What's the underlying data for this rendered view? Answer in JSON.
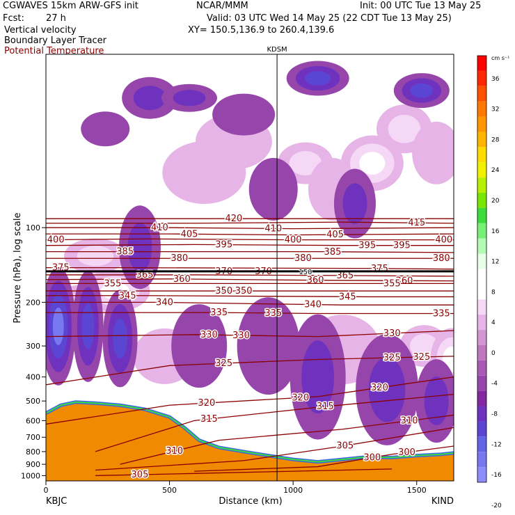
{
  "header": {
    "model": "CGWAVES 15km ARW-GFS init",
    "org": "NCAR/MMM",
    "init": "Init: 00 UTC Tue 13 May 25",
    "fcst_label": "Fcst:",
    "fcst_value": "27 h",
    "valid": "Valid: 03 UTC Wed 14 May 25 (22 CDT Tue 13 May 25)",
    "field1": "Vertical velocity",
    "field2": "Boundary Layer Tracer",
    "field3": "Potential Temperature",
    "xy": "XY= 150.5,136.9 to 260.4,139.6"
  },
  "colors": {
    "theta": "#8b0000",
    "field3_text": "#8b0000",
    "terrain": "#f08a00"
  },
  "chart_data": {
    "type": "heatmap",
    "marker_label": "KDSM",
    "marker_x_km": 935,
    "tropopause_label": "150",
    "xlabel": "Distance (km)",
    "ylabel": "Pressure (hPa), log scale",
    "xlim": [
      0,
      1650
    ],
    "ylim": [
      1050,
      20
    ],
    "x_ticks": [
      0,
      500,
      1000,
      1500
    ],
    "y_ticks": [
      100,
      200,
      300,
      400,
      500,
      600,
      700,
      800,
      900,
      1000
    ],
    "left_station": "KBJC",
    "right_station": "KIND",
    "colorbar": {
      "unit": "cm s⁻¹",
      "ticks": [
        36,
        32,
        28,
        24,
        20,
        16,
        12,
        8,
        4,
        0,
        -4,
        -8,
        -12,
        -16,
        -20
      ],
      "colors": [
        "#ff0000",
        "#ff2800",
        "#ff5000",
        "#ff7800",
        "#ff9600",
        "#ffb400",
        "#ffdc00",
        "#f0f000",
        "#b4f000",
        "#78e600",
        "#3cdc3c",
        "#78f078",
        "#b4fab4",
        "#e6ffe6",
        "#ffffff",
        "#ffffff",
        "#f5d8f5",
        "#e6b4e6",
        "#d296d2",
        "#be78be",
        "#aa5ab4",
        "#9646aa",
        "#8228a0",
        "#6e32be",
        "#5a46d2",
        "#6464e6",
        "#7878f0",
        "#8c8cfa"
      ]
    },
    "theta_contours": [
      {
        "label": "420",
        "x": [
          0,
          480,
          1000,
          1650
        ],
        "p": [
          92,
          92,
          92,
          92
        ],
        "label_x": [
          760
        ]
      },
      {
        "label": "415",
        "x": [
          0,
          600,
          1200,
          1650
        ],
        "p": [
          96,
          96,
          95,
          96
        ],
        "label_x": [
          1500
        ]
      },
      {
        "label": "410",
        "x": [
          0,
          500,
          1000,
          1650
        ],
        "p": [
          100,
          100,
          101,
          100
        ],
        "label_x": [
          460,
          920
        ]
      },
      {
        "label": "405",
        "x": [
          0,
          500,
          1000,
          1650
        ],
        "p": [
          106,
          106,
          107,
          106
        ],
        "label_x": [
          580,
          1170
        ]
      },
      {
        "label": "400",
        "x": [
          0,
          400,
          1000,
          1650
        ],
        "p": [
          112,
          111,
          112,
          112
        ],
        "label_x": [
          40,
          1000,
          1610
        ]
      },
      {
        "label": "395",
        "x": [
          0,
          600,
          1200,
          1650
        ],
        "p": [
          118,
          117,
          118,
          118
        ],
        "label_x": [
          720,
          1300,
          1440
        ]
      },
      {
        "label": "385",
        "x": [
          0,
          500,
          1100,
          1650
        ],
        "p": [
          125,
          125,
          125,
          126
        ],
        "label_x": [
          320,
          1160
        ]
      },
      {
        "label": "380",
        "x": [
          0,
          600,
          1100,
          1650
        ],
        "p": [
          133,
          133,
          133,
          133
        ],
        "label_x": [
          540,
          1040,
          1600
        ]
      },
      {
        "label": "375",
        "x": [
          0,
          300,
          1300,
          1650
        ],
        "p": [
          145,
          145,
          146,
          147
        ],
        "label_x": [
          60,
          1350
        ]
      },
      {
        "label": "370",
        "x": [
          0,
          500,
          1000,
          1650
        ],
        "p": [
          150,
          150,
          150,
          150
        ],
        "label_x": [
          720,
          880
        ]
      },
      {
        "label": "365",
        "x": [
          0,
          600,
          1200,
          1650
        ],
        "p": [
          155,
          155,
          156,
          157
        ],
        "label_x": [
          400,
          1210
        ]
      },
      {
        "label": "360",
        "x": [
          0,
          500,
          1100,
          1650
        ],
        "p": [
          162,
          161,
          163,
          164
        ],
        "label_x": [
          550,
          1090,
          1450
        ]
      },
      {
        "label": "355",
        "x": [
          0,
          300,
          1300,
          1650
        ],
        "p": [
          168,
          168,
          168,
          168
        ],
        "label_x": [
          270,
          1400
        ]
      },
      {
        "label": "350",
        "x": [
          0,
          600,
          1200,
          1650
        ],
        "p": [
          180,
          180,
          180,
          180
        ],
        "label_x": [
          720,
          800
        ]
      },
      {
        "label": "345",
        "x": [
          0,
          400,
          1300,
          1650
        ],
        "p": [
          188,
          188,
          190,
          190
        ],
        "label_x": [
          330,
          1220
        ]
      },
      {
        "label": "340",
        "x": [
          0,
          450,
          1200,
          1650
        ],
        "p": [
          200,
          200,
          205,
          205
        ],
        "label_x": [
          480,
          1080
        ]
      },
      {
        "label": "335",
        "x": [
          0,
          700,
          1100,
          1650
        ],
        "p": [
          220,
          220,
          222,
          222
        ],
        "label_x": [
          700,
          920,
          1600
        ]
      },
      {
        "label": "330",
        "x": [
          0,
          600,
          1100,
          1650
        ],
        "p": [
          275,
          270,
          275,
          260
        ],
        "label_x": [
          660,
          790,
          1400
        ]
      },
      {
        "label": "325",
        "x": [
          0,
          500,
          1100,
          1650
        ],
        "p": [
          430,
          360,
          340,
          330
        ],
        "label_x": [
          720,
          1400,
          1520
        ]
      },
      {
        "label": "320",
        "x": [
          0,
          500,
          1100,
          1650
        ],
        "p": [
          620,
          520,
          480,
          400
        ],
        "label_x": [
          650,
          1030,
          1350
        ]
      },
      {
        "label": "315",
        "x": [
          200,
          600,
          1100,
          1650
        ],
        "p": [
          800,
          600,
          530,
          470
        ],
        "label_x": [
          660,
          1130
        ]
      },
      {
        "label": "310",
        "x": [
          300,
          700,
          1200,
          1650
        ],
        "p": [
          900,
          720,
          650,
          570
        ],
        "label_x": [
          520,
          1470
        ]
      },
      {
        "label": "305",
        "x": [
          200,
          800,
          1200,
          1650
        ],
        "p": [
          950,
          870,
          760,
          640
        ],
        "label_x": [
          1210
        ]
      },
      {
        "label": "300",
        "x": [
          600,
          1100,
          1400,
          1650
        ],
        "p": [
          960,
          920,
          820,
          760
        ],
        "label_x": [
          1320,
          1460
        ]
      },
      {
        "label": "305",
        "x": [
          200,
          600,
          1000,
          1400
        ],
        "p": [
          1000,
          980,
          960,
          940
        ],
        "label_x": [
          380
        ]
      }
    ],
    "w_blobs": [
      {
        "x": 150,
        "p": 220,
        "value": 10,
        "rx": 55,
        "ry": 40
      },
      {
        "x": 280,
        "p": 180,
        "value": 8,
        "rx": 50,
        "ry": 30
      },
      {
        "x": 200,
        "p": 130,
        "value": 6,
        "rx": 45,
        "ry": 25
      },
      {
        "x": 640,
        "p": 60,
        "value": 4,
        "rx": 60,
        "ry": 45
      },
      {
        "x": 760,
        "p": 45,
        "value": 4,
        "rx": 55,
        "ry": 40
      },
      {
        "x": 1050,
        "p": 55,
        "value": 6,
        "rx": 40,
        "ry": 30
      },
      {
        "x": 1160,
        "p": 70,
        "value": 4,
        "rx": 35,
        "ry": 45
      },
      {
        "x": 1320,
        "p": 55,
        "value": 8,
        "rx": 45,
        "ry": 40
      },
      {
        "x": 1450,
        "p": 40,
        "value": 6,
        "rx": 40,
        "ry": 35
      },
      {
        "x": 1580,
        "p": 50,
        "value": 4,
        "rx": 35,
        "ry": 45
      },
      {
        "x": 1200,
        "p": 310,
        "value": 4,
        "rx": 55,
        "ry": 50
      },
      {
        "x": 1530,
        "p": 300,
        "value": 6,
        "rx": 35,
        "ry": 30
      },
      {
        "x": 1640,
        "p": 340,
        "value": 8,
        "rx": 30,
        "ry": 45
      },
      {
        "x": 480,
        "p": 330,
        "value": 3,
        "rx": 45,
        "ry": 40
      },
      {
        "x": 50,
        "p": 250,
        "value": -12,
        "rx": 25,
        "ry": 85
      },
      {
        "x": 170,
        "p": 250,
        "value": -10,
        "rx": 22,
        "ry": 80
      },
      {
        "x": 300,
        "p": 280,
        "value": -8,
        "rx": 25,
        "ry": 70
      },
      {
        "x": 380,
        "p": 120,
        "value": -6,
        "rx": 30,
        "ry": 60
      },
      {
        "x": 420,
        "p": 30,
        "value": -6,
        "rx": 40,
        "ry": 30
      },
      {
        "x": 580,
        "p": 30,
        "value": -6,
        "rx": 40,
        "ry": 20
      },
      {
        "x": 240,
        "p": 40,
        "value": -4,
        "rx": 35,
        "ry": 25
      },
      {
        "x": 800,
        "p": 35,
        "value": -4,
        "rx": 45,
        "ry": 30
      },
      {
        "x": 1100,
        "p": 25,
        "value": -10,
        "rx": 45,
        "ry": 25
      },
      {
        "x": 1520,
        "p": 28,
        "value": -8,
        "rx": 40,
        "ry": 25
      },
      {
        "x": 920,
        "p": 70,
        "value": -4,
        "rx": 35,
        "ry": 45
      },
      {
        "x": 1250,
        "p": 80,
        "value": -5,
        "rx": 30,
        "ry": 50
      },
      {
        "x": 1380,
        "p": 450,
        "value": -6,
        "rx": 45,
        "ry": 80
      },
      {
        "x": 1100,
        "p": 400,
        "value": -5,
        "rx": 40,
        "ry": 90
      },
      {
        "x": 900,
        "p": 300,
        "value": -4,
        "rx": 45,
        "ry": 70
      },
      {
        "x": 620,
        "p": 300,
        "value": -3,
        "rx": 40,
        "ry": 60
      },
      {
        "x": 1580,
        "p": 500,
        "value": -6,
        "rx": 30,
        "ry": 60
      }
    ],
    "terrain_p": [
      [
        0,
        560
      ],
      [
        60,
        520
      ],
      [
        120,
        505
      ],
      [
        200,
        510
      ],
      [
        300,
        520
      ],
      [
        400,
        540
      ],
      [
        500,
        580
      ],
      [
        560,
        640
      ],
      [
        620,
        720
      ],
      [
        700,
        770
      ],
      [
        800,
        800
      ],
      [
        900,
        830
      ],
      [
        1000,
        860
      ],
      [
        1100,
        880
      ],
      [
        1200,
        860
      ],
      [
        1300,
        840
      ],
      [
        1400,
        845
      ],
      [
        1500,
        830
      ],
      [
        1600,
        820
      ],
      [
        1650,
        810
      ]
    ]
  }
}
